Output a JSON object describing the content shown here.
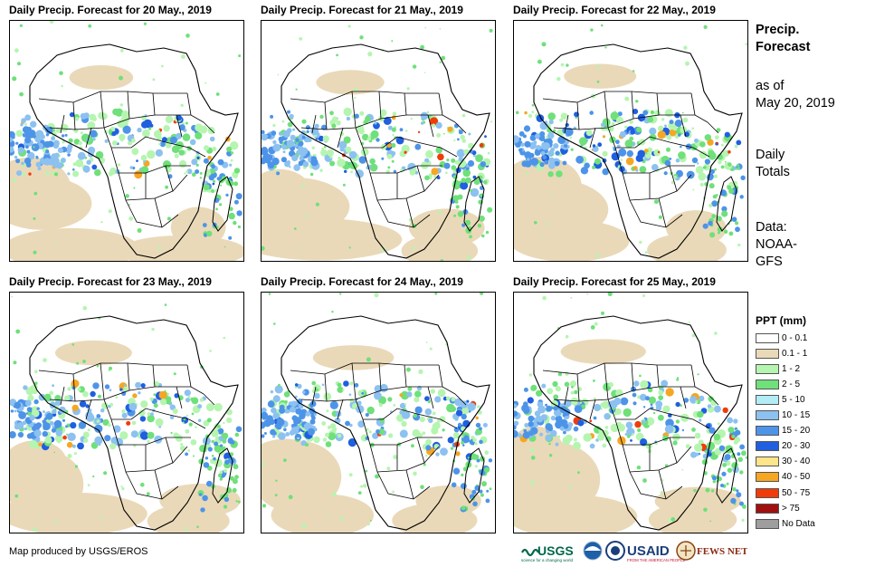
{
  "panels": [
    {
      "title": "Daily Precip. Forecast for 20 May., 2019"
    },
    {
      "title": "Daily Precip. Forecast for 21 May., 2019"
    },
    {
      "title": "Daily Precip. Forecast for 22 May., 2019"
    },
    {
      "title": "Daily Precip. Forecast for 23 May., 2019"
    },
    {
      "title": "Daily Precip. Forecast for 24 May., 2019"
    },
    {
      "title": "Daily Precip. Forecast for 25 May., 2019"
    }
  ],
  "sidebar": {
    "heading_line1": "Precip.",
    "heading_line2": "Forecast",
    "asof_line1": "as of",
    "asof_line2": "May 20, 2019",
    "totals_line1": "Daily",
    "totals_line2": "Totals",
    "data_line1": "Data:",
    "data_line2": "NOAA-",
    "data_line3": "GFS"
  },
  "legend": {
    "title": "PPT (mm)",
    "items": [
      {
        "label": "0 - 0.1",
        "color": "#ffffff"
      },
      {
        "label": "0.1 - 1",
        "color": "#ead9b8"
      },
      {
        "label": "1 - 2",
        "color": "#b5f5b0"
      },
      {
        "label": "2 - 5",
        "color": "#6fe07a"
      },
      {
        "label": "5 - 10",
        "color": "#b2ecf5"
      },
      {
        "label": "10 - 15",
        "color": "#8cc1f0"
      },
      {
        "label": "15 - 20",
        "color": "#4d94e8"
      },
      {
        "label": "20 - 30",
        "color": "#1f5fe0"
      },
      {
        "label": "30 - 40",
        "color": "#fde58a"
      },
      {
        "label": "40 - 50",
        "color": "#f5a623"
      },
      {
        "label": "50 - 75",
        "color": "#f03c0a"
      },
      {
        "label": "> 75",
        "color": "#a01010"
      },
      {
        "label": "No Data",
        "color": "#9e9e9e"
      }
    ]
  },
  "credit": "Map produced by USGS/EROS",
  "logos": {
    "usgs": "USGS",
    "usgs_tagline": "science for a changing world",
    "usaid": "USAID",
    "usaid_tagline": "FROM THE AMERICAN PEOPLE",
    "fewsnet": "FEWS NET"
  }
}
